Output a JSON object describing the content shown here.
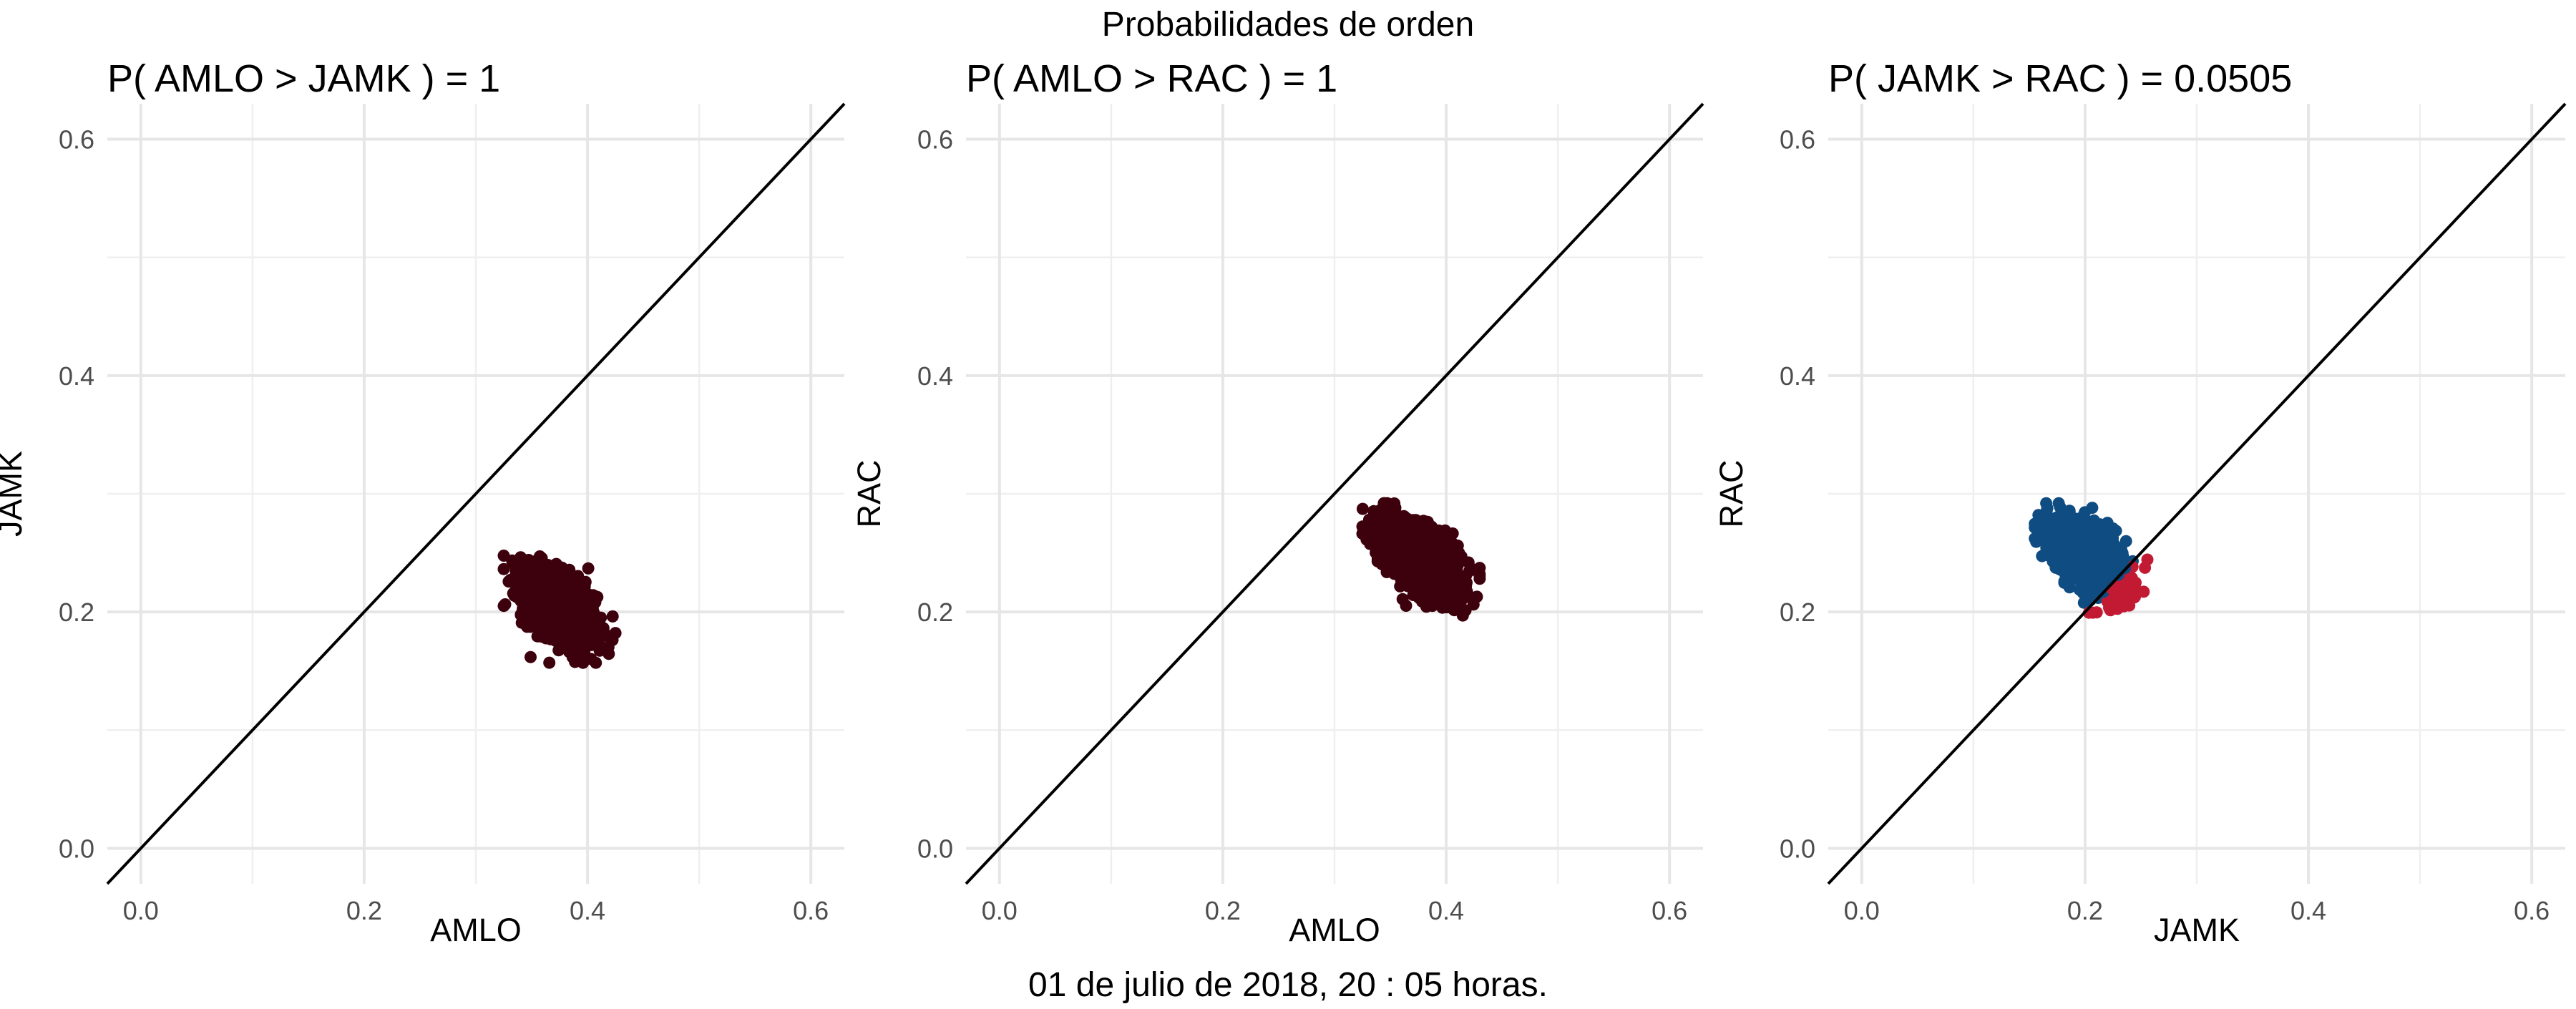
{
  "figure": {
    "title": "Probabilidades de orden",
    "caption": "01 de julio de 2018, 20 : 05 horas."
  },
  "colors": {
    "single": "#3d000d",
    "greater": "#0f4c81",
    "less": "#c21a33",
    "line": "#000000",
    "grid": "#e6e6e6"
  },
  "chart_data": [
    {
      "type": "scatter",
      "title": "P( AMLO > JAMK ) = 1",
      "xlabel": "AMLO",
      "ylabel": "JAMK",
      "xlim": [
        -0.03,
        0.63
      ],
      "ylim": [
        -0.03,
        0.63
      ],
      "xticks": [
        "0.0",
        "0.2",
        "0.4",
        "0.6"
      ],
      "yticks": [
        "0.0",
        "0.2",
        "0.4",
        "0.6"
      ],
      "reference_line": "y = x",
      "cloud": {
        "cx": 0.374,
        "cy": 0.205,
        "xmin": 0.325,
        "xmax": 0.425,
        "ymin": 0.157,
        "ymax": 0.258,
        "rho": -0.55
      },
      "series": [
        {
          "name": "AMLO > JAMK",
          "color": "#3d000d",
          "probability": 1
        }
      ]
    },
    {
      "type": "scatter",
      "title": "P( AMLO > RAC ) = 1",
      "xlabel": "AMLO",
      "ylabel": "RAC",
      "xlim": [
        -0.03,
        0.63
      ],
      "ylim": [
        -0.03,
        0.63
      ],
      "xticks": [
        "0.0",
        "0.2",
        "0.4",
        "0.6"
      ],
      "yticks": [
        "0.0",
        "0.2",
        "0.4",
        "0.6"
      ],
      "reference_line": "y = x",
      "cloud": {
        "cx": 0.378,
        "cy": 0.245,
        "xmin": 0.325,
        "xmax": 0.43,
        "ymin": 0.197,
        "ymax": 0.292,
        "rho": -0.55
      },
      "series": [
        {
          "name": "AMLO > RAC",
          "color": "#3d000d",
          "probability": 1
        }
      ]
    },
    {
      "type": "scatter",
      "title": "P( JAMK > RAC ) = 0.0505",
      "xlabel": "JAMK",
      "ylabel": "RAC",
      "xlim": [
        -0.03,
        0.63
      ],
      "ylim": [
        -0.03,
        0.63
      ],
      "xticks": [
        "0.0",
        "0.2",
        "0.4",
        "0.6"
      ],
      "yticks": [
        "0.0",
        "0.2",
        "0.4",
        "0.6"
      ],
      "reference_line": "y = x",
      "cloud": {
        "cx": 0.205,
        "cy": 0.245,
        "xmin": 0.155,
        "xmax": 0.258,
        "ymin": 0.197,
        "ymax": 0.292,
        "rho": -0.55
      },
      "series": [
        {
          "name": "JAMK < RAC",
          "color": "#0f4c81",
          "probability": 0.9495
        },
        {
          "name": "JAMK > RAC",
          "color": "#c21a33",
          "probability": 0.0505
        }
      ]
    }
  ]
}
